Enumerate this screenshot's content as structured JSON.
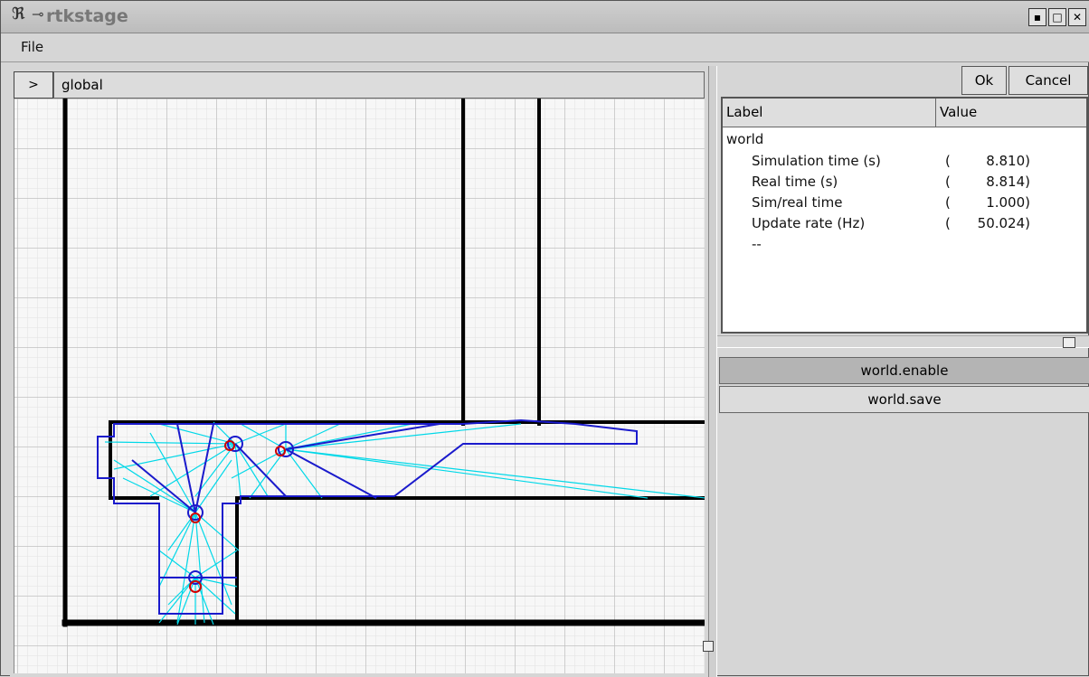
{
  "window": {
    "title": "rtkstage",
    "controls": [
      "minimize-icon",
      "maximize-icon",
      "close-icon"
    ]
  },
  "menu": {
    "file": "File"
  },
  "left": {
    "expand_label": ">",
    "path": "global"
  },
  "buttons": {
    "ok": "Ok",
    "cancel": "Cancel"
  },
  "table": {
    "headers": {
      "label": "Label",
      "value": "Value"
    },
    "group": "world",
    "rows": [
      {
        "label": "Simulation time (s)",
        "value": "8.810)"
      },
      {
        "label": "Real time (s)",
        "value": "8.814)"
      },
      {
        "label": "Sim/real time",
        "value": "1.000)"
      },
      {
        "label": "Update rate (Hz)",
        "value": "50.024)"
      }
    ],
    "open_paren": "(",
    "separator": "--"
  },
  "actions": {
    "enable": "world.enable",
    "save": "world.save"
  },
  "colors": {
    "wall": "#000000",
    "laser": "#00d8e8",
    "sonar": "#1a1acc",
    "robot": "#d00000",
    "grid": "#c8c8c8"
  }
}
